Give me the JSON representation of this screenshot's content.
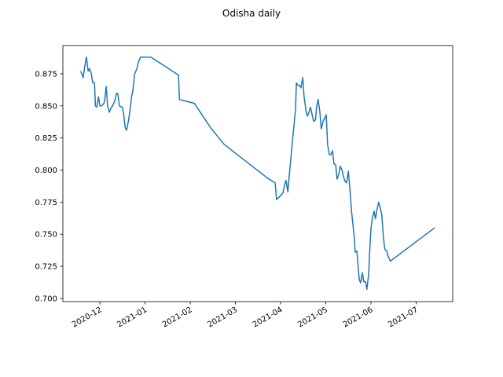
{
  "chart_data": {
    "type": "line",
    "title": "Odisha daily",
    "x": [
      11.57,
      11.6,
      11.63,
      11.67,
      11.7,
      11.74,
      11.77,
      11.81,
      11.84,
      11.88,
      11.9,
      11.93,
      11.97,
      12.0,
      12.03,
      12.07,
      12.1,
      12.14,
      12.17,
      12.21,
      12.24,
      12.28,
      12.33,
      12.37,
      12.4,
      12.43,
      12.49,
      12.52,
      12.56,
      12.59,
      12.63,
      12.66,
      12.7,
      12.73,
      12.77,
      12.82,
      12.85,
      12.9,
      13.13,
      13.74,
      13.76,
      14.09,
      14.45,
      14.75,
      15.7,
      15.88,
      15.91,
      15.97,
      16.05,
      16.1,
      16.12,
      16.16,
      16.19,
      16.23,
      16.26,
      16.3,
      16.33,
      16.35,
      16.38,
      16.42,
      16.45,
      16.49,
      16.52,
      16.56,
      16.59,
      16.63,
      16.66,
      16.7,
      16.73,
      16.77,
      16.8,
      16.83,
      16.87,
      16.9,
      16.94,
      16.97,
      17.01,
      17.04,
      17.08,
      17.11,
      17.15,
      17.18,
      17.22,
      17.25,
      17.29,
      17.32,
      17.36,
      17.39,
      17.43,
      17.46,
      17.5,
      17.53,
      17.57,
      17.6,
      17.63,
      17.65,
      17.69,
      17.7,
      17.74,
      17.77,
      17.81,
      17.84,
      17.88,
      17.91,
      17.95,
      17.97,
      18.0,
      18.03,
      18.07,
      18.1,
      18.14,
      18.17,
      18.21,
      18.24,
      18.28,
      18.31,
      18.35,
      18.38,
      18.43,
      19.41
    ],
    "values": [
      0.877,
      0.875,
      0.872,
      0.882,
      0.888,
      0.877,
      0.879,
      0.875,
      0.868,
      0.868,
      0.85,
      0.849,
      0.857,
      0.85,
      0.85,
      0.851,
      0.853,
      0.865,
      0.85,
      0.845,
      0.848,
      0.85,
      0.854,
      0.86,
      0.859,
      0.85,
      0.849,
      0.845,
      0.833,
      0.831,
      0.838,
      0.845,
      0.857,
      0.862,
      0.875,
      0.879,
      0.884,
      0.888,
      0.888,
      0.874,
      0.855,
      0.852,
      0.833,
      0.82,
      0.794,
      0.79,
      0.777,
      0.779,
      0.782,
      0.79,
      0.792,
      0.783,
      0.795,
      0.81,
      0.822,
      0.836,
      0.847,
      0.868,
      0.866,
      0.866,
      0.864,
      0.872,
      0.857,
      0.847,
      0.842,
      0.845,
      0.849,
      0.843,
      0.838,
      0.839,
      0.85,
      0.855,
      0.845,
      0.832,
      0.838,
      0.84,
      0.843,
      0.82,
      0.812,
      0.812,
      0.815,
      0.805,
      0.804,
      0.793,
      0.797,
      0.803,
      0.8,
      0.795,
      0.791,
      0.79,
      0.799,
      0.787,
      0.768,
      0.758,
      0.748,
      0.736,
      0.737,
      0.732,
      0.715,
      0.712,
      0.72,
      0.713,
      0.713,
      0.707,
      0.719,
      0.735,
      0.754,
      0.762,
      0.768,
      0.762,
      0.77,
      0.775,
      0.77,
      0.765,
      0.746,
      0.738,
      0.737,
      0.733,
      0.729,
      0.755
    ],
    "color": "#1f77b4",
    "xlim": [
      11.18,
      19.81
    ],
    "xticks": [
      {
        "value": 12,
        "label": "2020-12"
      },
      {
        "value": 13,
        "label": "2021-01"
      },
      {
        "value": 14,
        "label": "2021-02"
      },
      {
        "value": 15,
        "label": "2021-03"
      },
      {
        "value": 16,
        "label": "2021-04"
      },
      {
        "value": 17,
        "label": "2021-05"
      },
      {
        "value": 18,
        "label": "2021-06"
      },
      {
        "value": 19,
        "label": "2021-07"
      }
    ],
    "ylim": [
      0.6975,
      0.897
    ],
    "yticks": [
      {
        "value": 0.7,
        "label": "0.700"
      },
      0.725,
      {
        "value": 0.75,
        "label": "0.750"
      },
      0.775,
      {
        "value": 0.8,
        "label": "0.800"
      },
      0.825,
      {
        "value": 0.85,
        "label": "0.850"
      },
      0.875
    ]
  }
}
